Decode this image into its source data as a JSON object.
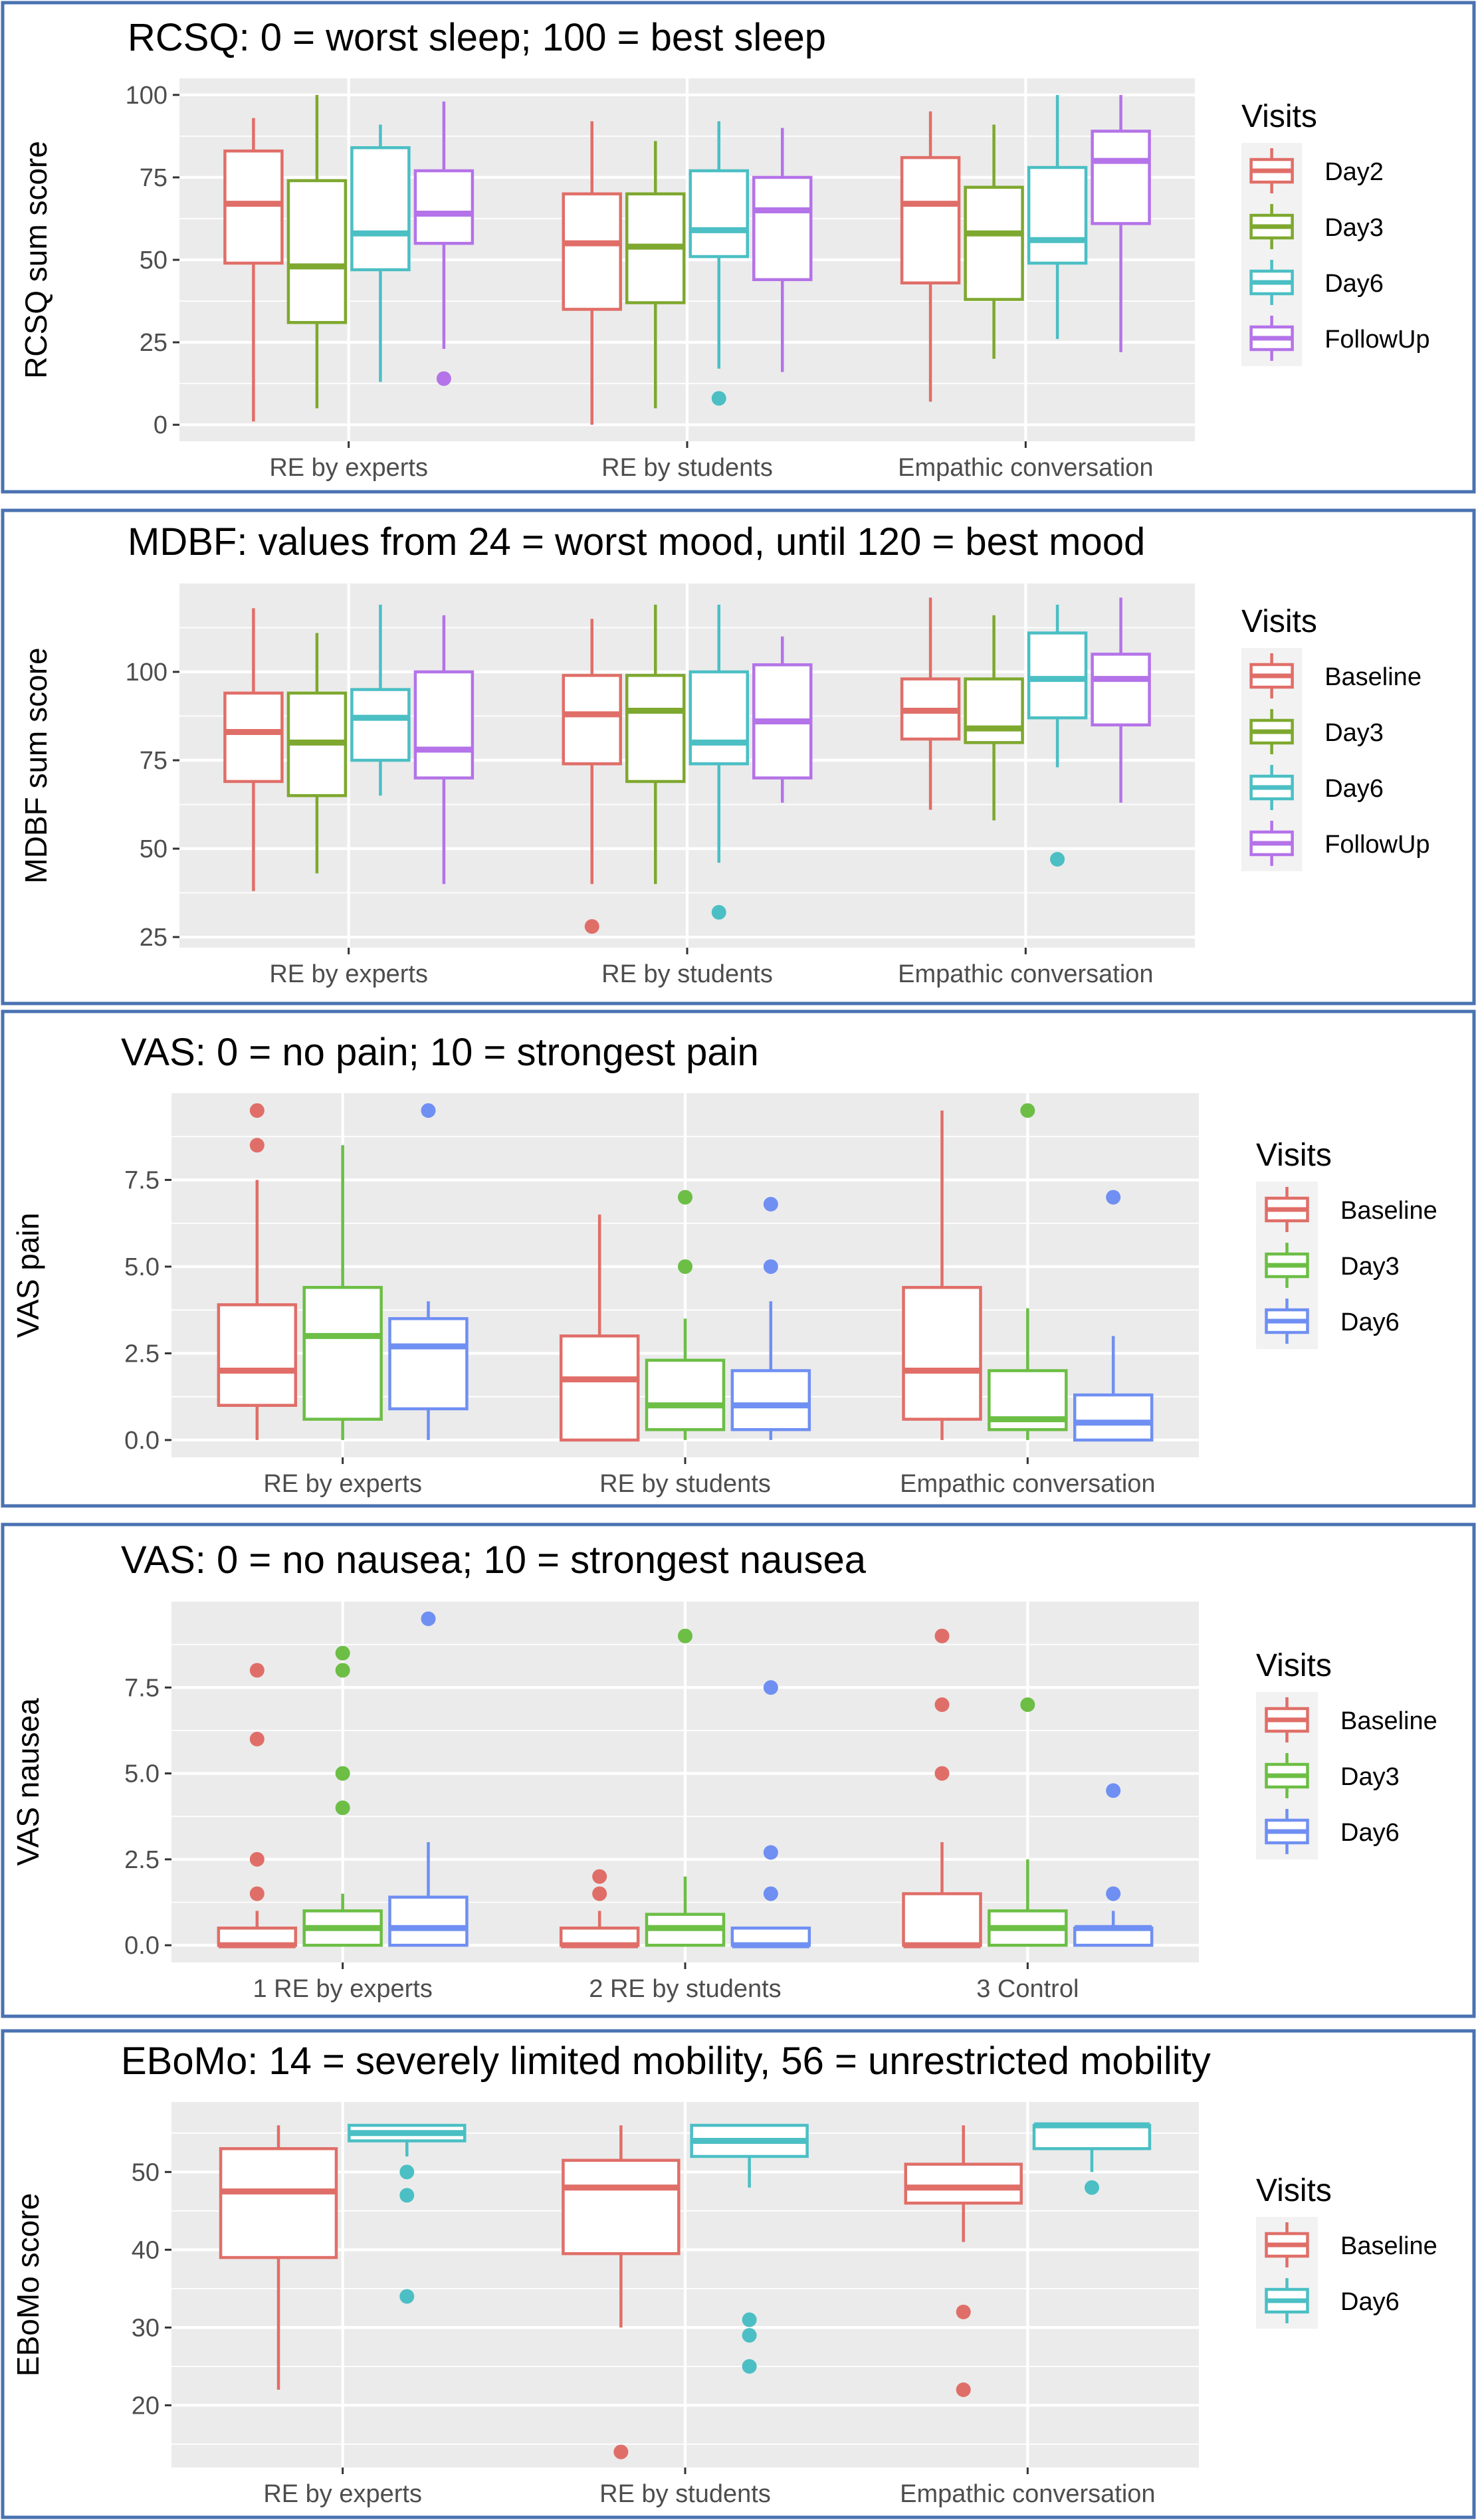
{
  "chart_data": [
    {
      "type": "box",
      "title": "RCSQ: 0 = worst sleep; 100 = best sleep",
      "xlabel": "",
      "ylabel": "RCSQ sum score",
      "ylim": [
        -5,
        105
      ],
      "yticks": [
        0,
        25,
        50,
        75,
        100
      ],
      "categories": [
        "RE by experts",
        "RE by students",
        "Empathic conversation"
      ],
      "legend": {
        "title": "Visits",
        "position": "right"
      },
      "series": [
        {
          "name": "Day2",
          "color": "#e06e68",
          "boxes": [
            {
              "lw": 1,
              "q1": 49,
              "med": 67,
              "q3": 83,
              "uw": 93,
              "outliers": []
            },
            {
              "lw": 0,
              "q1": 35,
              "med": 55,
              "q3": 70,
              "uw": 92,
              "outliers": []
            },
            {
              "lw": 7,
              "q1": 43,
              "med": 67,
              "q3": 81,
              "uw": 95,
              "outliers": []
            }
          ]
        },
        {
          "name": "Day3",
          "color": "#7ea82f",
          "boxes": [
            {
              "lw": 5,
              "q1": 31,
              "med": 48,
              "q3": 74,
              "uw": 100,
              "outliers": []
            },
            {
              "lw": 5,
              "q1": 37,
              "med": 54,
              "q3": 70,
              "uw": 86,
              "outliers": []
            },
            {
              "lw": 20,
              "q1": 38,
              "med": 58,
              "q3": 72,
              "uw": 91,
              "outliers": []
            }
          ]
        },
        {
          "name": "Day6",
          "color": "#4bbfc4",
          "boxes": [
            {
              "lw": 13,
              "q1": 47,
              "med": 58,
              "q3": 84,
              "uw": 91,
              "outliers": []
            },
            {
              "lw": 17,
              "q1": 51,
              "med": 59,
              "q3": 77,
              "uw": 92,
              "outliers": [
                8
              ]
            },
            {
              "lw": 26,
              "q1": 49,
              "med": 56,
              "q3": 78,
              "uw": 100,
              "outliers": []
            }
          ]
        },
        {
          "name": "FollowUp",
          "color": "#b473e8",
          "boxes": [
            {
              "lw": 23,
              "q1": 55,
              "med": 64,
              "q3": 77,
              "uw": 98,
              "outliers": [
                14
              ]
            },
            {
              "lw": 16,
              "q1": 44,
              "med": 65,
              "q3": 75,
              "uw": 90,
              "outliers": []
            },
            {
              "lw": 22,
              "q1": 61,
              "med": 80,
              "q3": 89,
              "uw": 100,
              "outliers": []
            }
          ]
        }
      ]
    },
    {
      "type": "box",
      "title": "MDBF: values from 24 = worst mood, until 120 = best mood",
      "xlabel": "",
      "ylabel": "MDBF sum score",
      "ylim": [
        22,
        125
      ],
      "yticks": [
        25,
        50,
        75,
        100
      ],
      "categories": [
        "RE by experts",
        "RE by students",
        "Empathic conversation"
      ],
      "legend": {
        "title": "Visits",
        "position": "right"
      },
      "series": [
        {
          "name": "Baseline",
          "color": "#e06e68",
          "boxes": [
            {
              "lw": 38,
              "q1": 69,
              "med": 83,
              "q3": 94,
              "uw": 118,
              "outliers": []
            },
            {
              "lw": 40,
              "q1": 74,
              "med": 88,
              "q3": 99,
              "uw": 115,
              "outliers": [
                28
              ]
            },
            {
              "lw": 61,
              "q1": 81,
              "med": 89,
              "q3": 98,
              "uw": 121,
              "outliers": []
            }
          ]
        },
        {
          "name": "Day3",
          "color": "#7ea82f",
          "boxes": [
            {
              "lw": 43,
              "q1": 65,
              "med": 80,
              "q3": 94,
              "uw": 111,
              "outliers": []
            },
            {
              "lw": 40,
              "q1": 69,
              "med": 89,
              "q3": 99,
              "uw": 119,
              "outliers": []
            },
            {
              "lw": 58,
              "q1": 80,
              "med": 84,
              "q3": 98,
              "uw": 116,
              "outliers": []
            }
          ]
        },
        {
          "name": "Day6",
          "color": "#4bbfc4",
          "boxes": [
            {
              "lw": 65,
              "q1": 75,
              "med": 87,
              "q3": 95,
              "uw": 119,
              "outliers": []
            },
            {
              "lw": 46,
              "q1": 74,
              "med": 80,
              "q3": 100,
              "uw": 119,
              "outliers": [
                32
              ]
            },
            {
              "lw": 73,
              "q1": 87,
              "med": 98,
              "q3": 111,
              "uw": 119,
              "outliers": [
                47
              ]
            }
          ]
        },
        {
          "name": "FollowUp",
          "color": "#b473e8",
          "boxes": [
            {
              "lw": 40,
              "q1": 70,
              "med": 78,
              "q3": 100,
              "uw": 116,
              "outliers": []
            },
            {
              "lw": 63,
              "q1": 70,
              "med": 86,
              "q3": 102,
              "uw": 110,
              "outliers": []
            },
            {
              "lw": 63,
              "q1": 85,
              "med": 98,
              "q3": 105,
              "uw": 121,
              "outliers": []
            }
          ]
        }
      ]
    },
    {
      "type": "box",
      "title": "VAS: 0 = no pain; 10 = strongest pain",
      "xlabel": "",
      "ylabel": "VAS pain",
      "ylim": [
        -0.5,
        10
      ],
      "yticks": [
        0.0,
        2.5,
        5.0,
        7.5
      ],
      "categories": [
        "RE by experts",
        "RE by students",
        "Empathic conversation"
      ],
      "legend": {
        "title": "Visits",
        "position": "right"
      },
      "series": [
        {
          "name": "Baseline",
          "color": "#e06e68",
          "boxes": [
            {
              "lw": 0,
              "q1": 1.0,
              "med": 2.0,
              "q3": 3.9,
              "uw": 7.5,
              "outliers": [
                8.5,
                9.5
              ]
            },
            {
              "lw": 0,
              "q1": 0.0,
              "med": 1.75,
              "q3": 3.0,
              "uw": 6.5,
              "outliers": []
            },
            {
              "lw": 0,
              "q1": 0.6,
              "med": 2.0,
              "q3": 4.4,
              "uw": 9.5,
              "outliers": []
            }
          ]
        },
        {
          "name": "Day3",
          "color": "#6cbe45",
          "boxes": [
            {
              "lw": 0,
              "q1": 0.6,
              "med": 3.0,
              "q3": 4.4,
              "uw": 8.5,
              "outliers": []
            },
            {
              "lw": 0,
              "q1": 0.3,
              "med": 1.0,
              "q3": 2.3,
              "uw": 3.5,
              "outliers": [
                5.0,
                7.0
              ]
            },
            {
              "lw": 0,
              "q1": 0.3,
              "med": 0.6,
              "q3": 2.0,
              "uw": 3.8,
              "outliers": [
                9.5
              ]
            }
          ]
        },
        {
          "name": "Day6",
          "color": "#6f8ff2",
          "boxes": [
            {
              "lw": 0,
              "q1": 0.9,
              "med": 2.7,
              "q3": 3.5,
              "uw": 4.0,
              "outliers": [
                9.5
              ]
            },
            {
              "lw": 0,
              "q1": 0.3,
              "med": 1.0,
              "q3": 2.0,
              "uw": 4.0,
              "outliers": [
                5.0,
                6.8
              ]
            },
            {
              "lw": 0,
              "q1": 0.0,
              "med": 0.5,
              "q3": 1.3,
              "uw": 3.0,
              "outliers": [
                7.0
              ]
            }
          ]
        }
      ]
    },
    {
      "type": "box",
      "title": "VAS: 0 = no nausea; 10 = strongest nausea",
      "xlabel": "",
      "ylabel": "VAS nausea",
      "ylim": [
        -0.5,
        10
      ],
      "yticks": [
        0.0,
        2.5,
        5.0,
        7.5
      ],
      "categories": [
        "1 RE by experts",
        "2 RE by students",
        "3 Control"
      ],
      "legend": {
        "title": "Visits",
        "position": "right"
      },
      "series": [
        {
          "name": "Baseline",
          "color": "#e06e68",
          "boxes": [
            {
              "lw": 0,
              "q1": 0.0,
              "med": 0.0,
              "q3": 0.5,
              "uw": 1.0,
              "outliers": [
                1.5,
                2.5,
                6.0,
                8.0
              ]
            },
            {
              "lw": 0,
              "q1": 0.0,
              "med": 0.0,
              "q3": 0.5,
              "uw": 1.0,
              "outliers": [
                1.5,
                2.0
              ]
            },
            {
              "lw": 0,
              "q1": 0.0,
              "med": 0.0,
              "q3": 1.5,
              "uw": 3.0,
              "outliers": [
                5.0,
                7.0,
                9.0
              ]
            }
          ]
        },
        {
          "name": "Day3",
          "color": "#6cbe45",
          "boxes": [
            {
              "lw": 0,
              "q1": 0.0,
              "med": 0.5,
              "q3": 1.0,
              "uw": 1.5,
              "outliers": [
                4.0,
                5.0,
                8.0,
                8.5
              ]
            },
            {
              "lw": 0,
              "q1": 0.0,
              "med": 0.5,
              "q3": 0.9,
              "uw": 2.0,
              "outliers": [
                9.0
              ]
            },
            {
              "lw": 0,
              "q1": 0.0,
              "med": 0.5,
              "q3": 1.0,
              "uw": 2.5,
              "outliers": [
                7.0
              ]
            }
          ]
        },
        {
          "name": "Day6",
          "color": "#6f8ff2",
          "boxes": [
            {
              "lw": 0,
              "q1": 0.0,
              "med": 0.5,
              "q3": 1.4,
              "uw": 3.0,
              "outliers": [
                9.5
              ]
            },
            {
              "lw": 0,
              "q1": 0.0,
              "med": 0.0,
              "q3": 0.5,
              "uw": 0.5,
              "outliers": [
                1.5,
                2.7,
                7.5
              ]
            },
            {
              "lw": 0,
              "q1": 0.0,
              "med": 0.5,
              "q3": 0.5,
              "uw": 1.0,
              "outliers": [
                1.5,
                4.5
              ]
            }
          ]
        }
      ]
    },
    {
      "type": "box",
      "title": "EBoMo: 14 = severely limited mobility, 56 = unrestricted mobility",
      "xlabel": "",
      "ylabel": "EBoMo score",
      "ylim": [
        12,
        59
      ],
      "yticks": [
        20,
        30,
        40,
        50
      ],
      "categories": [
        "RE by experts",
        "RE by students",
        "Empathic conversation"
      ],
      "legend": {
        "title": "Visits",
        "position": "right"
      },
      "series": [
        {
          "name": "Baseline",
          "color": "#e06e68",
          "boxes": [
            {
              "lw": 22,
              "q1": 39,
              "med": 47.5,
              "q3": 53,
              "uw": 56,
              "outliers": []
            },
            {
              "lw": 30,
              "q1": 39.5,
              "med": 48,
              "q3": 51.5,
              "uw": 56,
              "outliers": [
                14
              ]
            },
            {
              "lw": 41,
              "q1": 46,
              "med": 48,
              "q3": 51,
              "uw": 56,
              "outliers": [
                22,
                32
              ]
            }
          ]
        },
        {
          "name": "Day6",
          "color": "#4bbfc4",
          "boxes": [
            {
              "lw": 52,
              "q1": 54,
              "med": 55,
              "q3": 56,
              "uw": 56,
              "outliers": [
                34,
                47,
                50
              ]
            },
            {
              "lw": 48,
              "q1": 52,
              "med": 54,
              "q3": 56,
              "uw": 56,
              "outliers": [
                25,
                29,
                31
              ]
            },
            {
              "lw": 50,
              "q1": 53,
              "med": 56,
              "q3": 56,
              "uw": 56,
              "outliers": [
                48
              ]
            }
          ]
        }
      ]
    }
  ]
}
